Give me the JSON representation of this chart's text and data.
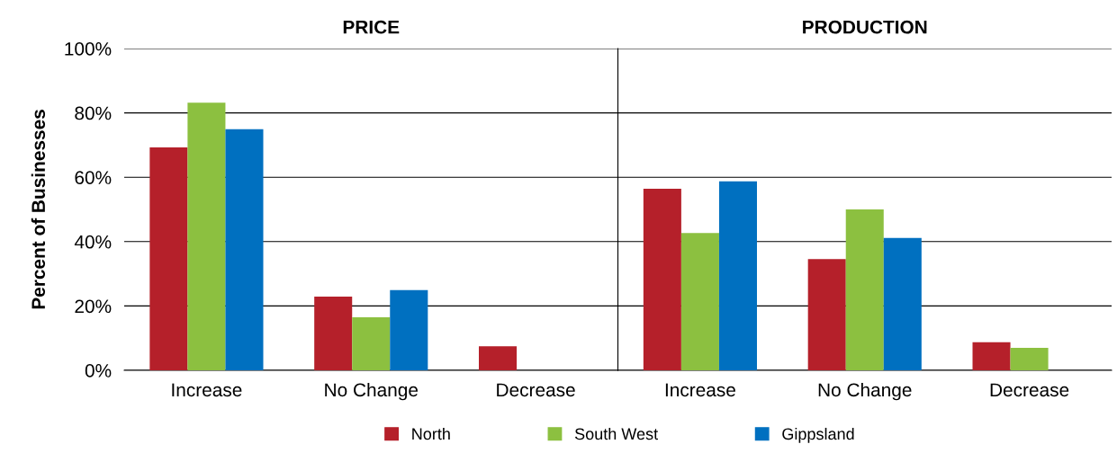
{
  "chart_data": [
    {
      "type": "bar",
      "title": "PRICE",
      "ylabel": "Percent of Businesses",
      "categories": [
        "Increase",
        "No Change",
        "Decrease"
      ],
      "series": [
        {
          "name": "North",
          "color": "#b5202a",
          "values": [
            69.3,
            22.9,
            7.5
          ]
        },
        {
          "name": "South West",
          "color": "#8cc040",
          "values": [
            83.2,
            16.5,
            0
          ]
        },
        {
          "name": "Gippsland",
          "color": "#0070c0",
          "values": [
            74.9,
            24.9,
            0
          ]
        }
      ],
      "ylim": [
        0,
        100
      ],
      "yticks": [
        {
          "value": 0,
          "label": "0%"
        },
        {
          "value": 20,
          "label": "20%"
        },
        {
          "value": 40,
          "label": "40%"
        },
        {
          "value": 60,
          "label": "60%"
        },
        {
          "value": 80,
          "label": "80%"
        },
        {
          "value": 100,
          "label": "100%"
        }
      ],
      "grid": "y",
      "legend": "bottom"
    },
    {
      "type": "bar",
      "title": "PRODUCTION",
      "categories": [
        "Increase",
        "No Change",
        "Decrease"
      ],
      "series": [
        {
          "color": "#b5202a",
          "values": [
            56.4,
            34.6,
            8.7
          ]
        },
        {
          "color": "#8cc040",
          "values": [
            42.7,
            50.0,
            7.0
          ]
        },
        {
          "color": "#0070c0",
          "values": [
            58.7,
            41.1,
            0
          ]
        }
      ],
      "ylim": [
        0,
        100
      ],
      "yticks": [
        {
          "value": 0,
          "label": null
        },
        {
          "value": 20,
          "label": null
        },
        {
          "value": 40,
          "label": null
        },
        {
          "value": 60,
          "label": null
        },
        {
          "value": 80,
          "label": null
        },
        {
          "value": 100,
          "label": null
        }
      ],
      "grid": "y",
      "tick_labels": "x"
    }
  ]
}
